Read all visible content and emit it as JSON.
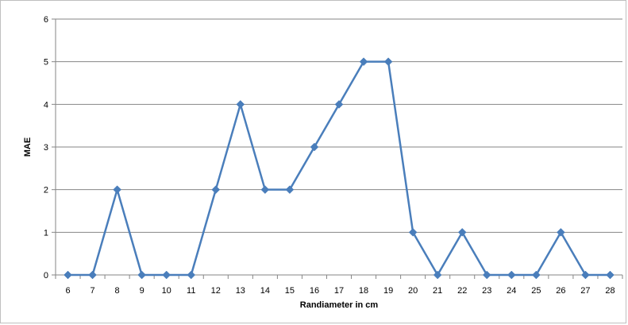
{
  "chart_data": {
    "type": "line",
    "title": "",
    "xlabel": "Randiameter in cm",
    "ylabel": "MAE",
    "categories": [
      "6",
      "7",
      "8",
      "9",
      "10",
      "11",
      "12",
      "13",
      "14",
      "15",
      "16",
      "17",
      "18",
      "19",
      "20",
      "21",
      "22",
      "23",
      "24",
      "25",
      "26",
      "27",
      "28"
    ],
    "series": [
      {
        "values": [
          0,
          0,
          2,
          0,
          0,
          0,
          2,
          4,
          2,
          2,
          3,
          4,
          5,
          5,
          1,
          0,
          1,
          0,
          0,
          0,
          1,
          0,
          0
        ]
      }
    ],
    "ylim": [
      0,
      6
    ],
    "yticks": [
      "0",
      "1",
      "2",
      "3",
      "4",
      "5",
      "6"
    ],
    "grid": true,
    "legend": "none",
    "colors": {
      "line": "#4a7ebb",
      "marker": "#4a7ebb",
      "grid": "#868686",
      "axis": "#868686"
    }
  }
}
